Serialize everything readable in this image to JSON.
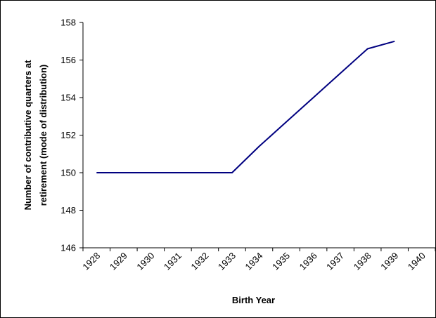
{
  "chart_data": {
    "type": "line",
    "title": "",
    "xlabel": "Birth Year",
    "ylabel_lines": [
      "Number of contributive quarters at",
      "retirement (mode of distribution)"
    ],
    "categories": [
      "1928",
      "1929",
      "1930",
      "1931",
      "1932",
      "1933",
      "1934",
      "1935",
      "1936",
      "1937",
      "1938",
      "1939",
      "1940"
    ],
    "series": [
      {
        "points": [
          {
            "x": 1928,
            "y": 150
          },
          {
            "x": 1933,
            "y": 150
          },
          {
            "x": 1934,
            "y": 151.4
          },
          {
            "x": 1935,
            "y": 152.7
          },
          {
            "x": 1936,
            "y": 154
          },
          {
            "x": 1937,
            "y": 155.3
          },
          {
            "x": 1938,
            "y": 156.6
          },
          {
            "x": 1939,
            "y": 157
          }
        ]
      }
    ],
    "yticks": [
      "146",
      "148",
      "150",
      "152",
      "154",
      "156",
      "158"
    ],
    "ylim": [
      146,
      158
    ],
    "grid": false,
    "colors": {
      "line": "#000080",
      "axis": "#000000"
    }
  }
}
